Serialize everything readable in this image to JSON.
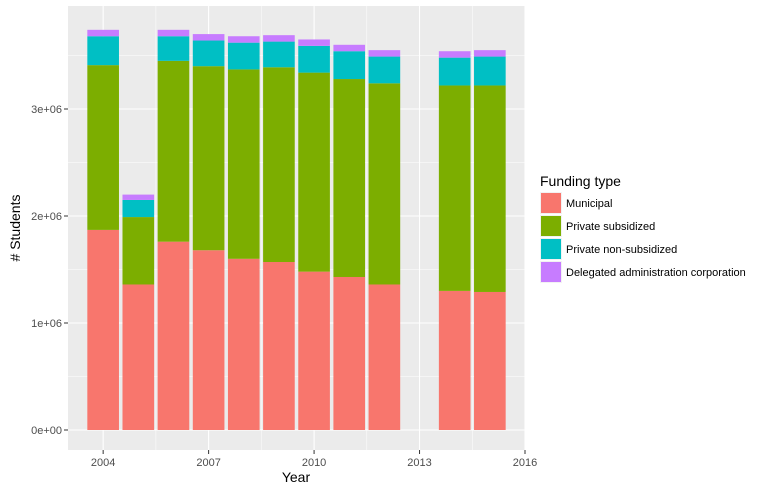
{
  "chart_data": {
    "type": "bar",
    "stacked": true,
    "xlabel": "Year",
    "ylabel": "# Students",
    "x": [
      2004,
      2005,
      2006,
      2007,
      2008,
      2009,
      2010,
      2011,
      2012,
      2014,
      2015
    ],
    "xlim": [
      2003,
      2016
    ],
    "x_ticks": [
      2004,
      2007,
      2010,
      2013,
      2016
    ],
    "ylim": [
      0,
      3800000
    ],
    "y_ticks": [
      0,
      1000000,
      2000000,
      3000000
    ],
    "y_tick_labels": [
      "0e+00",
      "1e+06",
      "2e+06",
      "3e+06"
    ],
    "grid": true,
    "legend": {
      "title": "Funding type",
      "placement": "right"
    },
    "series": [
      {
        "name": "Municipal",
        "color": "#F8766D",
        "values": [
          1870000,
          1360000,
          1760000,
          1680000,
          1600000,
          1570000,
          1480000,
          1430000,
          1360000,
          1300000,
          1290000
        ]
      },
      {
        "name": "Private subsidized",
        "color": "#7CAE00",
        "values": [
          1540000,
          630000,
          1690000,
          1720000,
          1770000,
          1820000,
          1860000,
          1850000,
          1880000,
          1920000,
          1930000
        ]
      },
      {
        "name": "Private non-subsidized",
        "color": "#00BFC4",
        "values": [
          270000,
          160000,
          230000,
          240000,
          250000,
          240000,
          250000,
          260000,
          250000,
          260000,
          270000
        ]
      },
      {
        "name": "Delegated administration corporation",
        "color": "#C77CFF",
        "values": [
          60000,
          50000,
          60000,
          60000,
          60000,
          60000,
          60000,
          60000,
          60000,
          60000,
          60000
        ]
      }
    ]
  }
}
